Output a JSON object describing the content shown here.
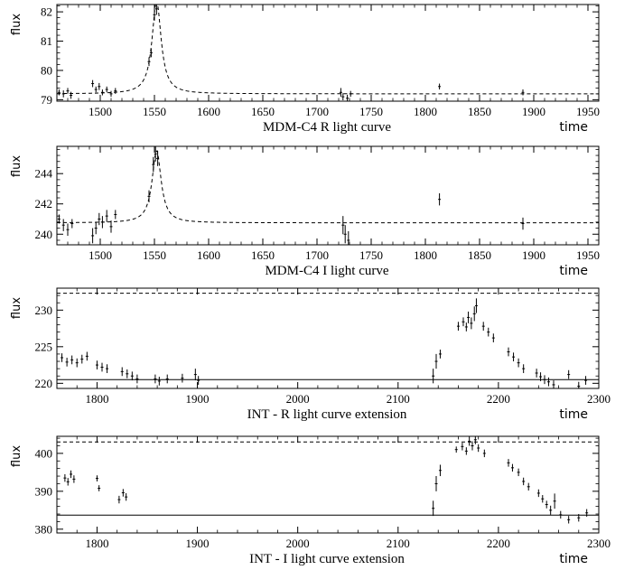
{
  "chart_data": [
    {
      "type": "line",
      "title": "MDM-C4 R light curve",
      "xlabel": "time",
      "ylabel": "flux",
      "xlim": [
        1460,
        1960
      ],
      "ylim": [
        78.95,
        82.25
      ],
      "xticks": [
        1500,
        1550,
        1600,
        1650,
        1700,
        1750,
        1800,
        1850,
        1900,
        1950
      ],
      "yticks": [
        79,
        80,
        81,
        82
      ],
      "model_curve": {
        "style": "dashed",
        "kind": "lorentzian",
        "baseline": 79.2,
        "amplitude": 3.2,
        "center": 1552,
        "width": 5
      },
      "points": [
        [
          1462,
          79.25,
          0.1
        ],
        [
          1466,
          79.2,
          0.12
        ],
        [
          1470,
          79.3,
          0.1
        ],
        [
          1473,
          79.15,
          0.12
        ],
        [
          1493,
          79.55,
          0.12
        ],
        [
          1496,
          79.35,
          0.1
        ],
        [
          1499,
          79.45,
          0.12
        ],
        [
          1502,
          79.25,
          0.1
        ],
        [
          1506,
          79.35,
          0.1
        ],
        [
          1510,
          79.2,
          0.1
        ],
        [
          1514,
          79.3,
          0.1
        ],
        [
          1545,
          80.3,
          0.15
        ],
        [
          1547,
          80.6,
          0.15
        ],
        [
          1550,
          81.9,
          0.2
        ],
        [
          1552,
          82.1,
          0.2
        ],
        [
          1722,
          79.25,
          0.15
        ],
        [
          1724,
          79.1,
          0.12
        ],
        [
          1728,
          79.05,
          0.12
        ],
        [
          1731,
          79.2,
          0.1
        ],
        [
          1813,
          79.45,
          0.1
        ],
        [
          1890,
          79.25,
          0.1
        ]
      ]
    },
    {
      "type": "line",
      "title": "MDM-C4 I light curve",
      "xlabel": "time",
      "ylabel": "flux",
      "xlim": [
        1460,
        1960
      ],
      "ylim": [
        239.3,
        245.8
      ],
      "xticks": [
        1500,
        1550,
        1600,
        1650,
        1700,
        1750,
        1800,
        1850,
        1900,
        1950
      ],
      "yticks": [
        240,
        242,
        244
      ],
      "model_curve": {
        "style": "dashed",
        "kind": "lorentzian",
        "baseline": 240.75,
        "amplitude": 4.8,
        "center": 1552,
        "width": 5
      },
      "points": [
        [
          1462,
          241.0,
          0.3
        ],
        [
          1466,
          240.6,
          0.4
        ],
        [
          1470,
          240.3,
          0.4
        ],
        [
          1474,
          240.7,
          0.3
        ],
        [
          1493,
          239.9,
          0.5
        ],
        [
          1496,
          240.4,
          0.4
        ],
        [
          1499,
          241.0,
          0.4
        ],
        [
          1502,
          240.8,
          0.4
        ],
        [
          1506,
          241.2,
          0.4
        ],
        [
          1510,
          240.5,
          0.4
        ],
        [
          1514,
          241.3,
          0.3
        ],
        [
          1545,
          242.5,
          0.4
        ],
        [
          1549,
          244.6,
          0.5
        ],
        [
          1551,
          245.3,
          0.5
        ],
        [
          1553,
          245.0,
          0.5
        ],
        [
          1724,
          240.6,
          0.6
        ],
        [
          1726,
          240.0,
          0.6
        ],
        [
          1729,
          239.6,
          0.6
        ],
        [
          1813,
          242.3,
          0.4
        ],
        [
          1890,
          240.7,
          0.4
        ]
      ]
    },
    {
      "type": "line",
      "title": "INT - R light curve extension",
      "xlabel": "time",
      "ylabel": "flux",
      "xlim": [
        1760,
        2300
      ],
      "ylim": [
        219.3,
        233.0
      ],
      "xticks": [
        1800,
        1900,
        2000,
        2100,
        2200,
        2300
      ],
      "yticks": [
        220,
        225,
        230
      ],
      "reference_lines": [
        {
          "style": "dashed",
          "y": 232.3
        },
        {
          "style": "solid",
          "y": 220.5
        }
      ],
      "points": [
        [
          1765,
          223.5,
          0.6
        ],
        [
          1770,
          222.9,
          0.6
        ],
        [
          1775,
          223.2,
          0.6
        ],
        [
          1780,
          222.8,
          0.6
        ],
        [
          1785,
          223.3,
          0.6
        ],
        [
          1790,
          223.7,
          0.6
        ],
        [
          1800,
          222.5,
          0.6
        ],
        [
          1805,
          222.2,
          0.6
        ],
        [
          1810,
          222.0,
          0.6
        ],
        [
          1825,
          221.6,
          0.6
        ],
        [
          1830,
          221.3,
          0.6
        ],
        [
          1835,
          221.0,
          0.6
        ],
        [
          1840,
          220.6,
          0.6
        ],
        [
          1858,
          220.6,
          0.6
        ],
        [
          1862,
          220.3,
          0.6
        ],
        [
          1870,
          220.6,
          0.6
        ],
        [
          1885,
          220.7,
          0.6
        ],
        [
          1898,
          221.2,
          0.8
        ],
        [
          1901,
          220.4,
          0.6
        ],
        [
          2135,
          221.0,
          1.0
        ],
        [
          2138,
          223.0,
          1.0
        ],
        [
          2142,
          224.0,
          0.6
        ],
        [
          2160,
          227.8,
          0.6
        ],
        [
          2165,
          228.4,
          0.6
        ],
        [
          2168,
          227.7,
          0.6
        ],
        [
          2170,
          229.0,
          0.8
        ],
        [
          2173,
          228.2,
          0.8
        ],
        [
          2176,
          229.5,
          1.0
        ],
        [
          2178,
          230.6,
          1.0
        ],
        [
          2185,
          227.8,
          0.6
        ],
        [
          2190,
          227.0,
          0.6
        ],
        [
          2195,
          226.2,
          0.6
        ],
        [
          2210,
          224.3,
          0.6
        ],
        [
          2215,
          223.6,
          0.6
        ],
        [
          2220,
          222.8,
          0.6
        ],
        [
          2225,
          222.0,
          0.6
        ],
        [
          2238,
          221.4,
          0.6
        ],
        [
          2242,
          220.9,
          0.6
        ],
        [
          2246,
          220.5,
          0.6
        ],
        [
          2250,
          220.2,
          0.6
        ],
        [
          2255,
          219.8,
          0.6
        ],
        [
          2270,
          221.2,
          0.6
        ],
        [
          2280,
          219.6,
          0.6
        ],
        [
          2287,
          220.4,
          0.6
        ]
      ]
    },
    {
      "type": "line",
      "title": "INT - I light curve extension",
      "xlabel": "time",
      "ylabel": "flux",
      "xlim": [
        1760,
        2300
      ],
      "ylim": [
        379.0,
        404.5
      ],
      "xticks": [
        1800,
        1900,
        2000,
        2100,
        2200,
        2300
      ],
      "yticks": [
        380,
        390,
        400
      ],
      "reference_lines": [
        {
          "style": "dashed",
          "y": 403.0
        },
        {
          "style": "solid",
          "y": 383.7
        }
      ],
      "points": [
        [
          1768,
          393.5,
          1.0
        ],
        [
          1771,
          392.5,
          1.0
        ],
        [
          1774,
          394.5,
          1.0
        ],
        [
          1777,
          393.2,
          1.0
        ],
        [
          1800,
          393.4,
          0.8
        ],
        [
          1802,
          390.8,
          0.8
        ],
        [
          1822,
          387.8,
          1.0
        ],
        [
          1826,
          389.6,
          1.0
        ],
        [
          1829,
          388.5,
          1.0
        ],
        [
          2135,
          385.5,
          2.0
        ],
        [
          2138,
          392.0,
          2.0
        ],
        [
          2142,
          395.5,
          1.5
        ],
        [
          2158,
          401.0,
          0.8
        ],
        [
          2164,
          401.8,
          1.0
        ],
        [
          2168,
          400.6,
          1.0
        ],
        [
          2171,
          403.2,
          1.2
        ],
        [
          2174,
          402.0,
          1.2
        ],
        [
          2177,
          403.6,
          1.2
        ],
        [
          2180,
          401.4,
          1.0
        ],
        [
          2186,
          400.0,
          1.0
        ],
        [
          2210,
          397.5,
          1.0
        ],
        [
          2214,
          396.2,
          1.0
        ],
        [
          2220,
          395.0,
          1.0
        ],
        [
          2225,
          392.6,
          1.0
        ],
        [
          2230,
          391.2,
          1.0
        ],
        [
          2240,
          389.5,
          1.0
        ],
        [
          2244,
          388.0,
          1.0
        ],
        [
          2248,
          386.5,
          1.0
        ],
        [
          2252,
          385.0,
          1.2
        ],
        [
          2256,
          387.4,
          2.0
        ],
        [
          2262,
          383.8,
          1.0
        ],
        [
          2270,
          382.5,
          1.0
        ],
        [
          2280,
          383.0,
          1.0
        ],
        [
          2288,
          384.3,
          1.0
        ]
      ]
    }
  ]
}
